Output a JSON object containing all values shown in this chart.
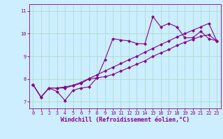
{
  "xlabel": "Windchill (Refroidissement éolien,°C)",
  "ylabel": "",
  "bg_color": "#cceeff",
  "line_color": "#880088",
  "grid_color": "#aaddcc",
  "xlim": [
    -0.5,
    23.5
  ],
  "ylim": [
    6.7,
    11.3
  ],
  "xticks": [
    0,
    1,
    2,
    3,
    4,
    5,
    6,
    7,
    8,
    9,
    10,
    11,
    12,
    13,
    14,
    15,
    16,
    17,
    18,
    19,
    20,
    21,
    22,
    23
  ],
  "yticks": [
    7,
    8,
    9,
    10,
    11
  ],
  "line1_x": [
    0,
    1,
    2,
    3,
    4,
    5,
    6,
    7,
    8,
    9,
    10,
    11,
    12,
    13,
    14,
    15,
    16,
    17,
    18,
    19,
    20,
    21,
    22,
    23
  ],
  "line1_y": [
    7.75,
    7.2,
    7.6,
    7.45,
    7.05,
    7.5,
    7.6,
    7.65,
    8.05,
    8.85,
    9.78,
    9.72,
    9.68,
    9.56,
    9.55,
    10.75,
    10.3,
    10.45,
    10.3,
    9.82,
    9.82,
    10.1,
    9.78,
    9.68
  ],
  "line2_x": [
    0,
    1,
    2,
    3,
    4,
    5,
    6,
    7,
    8,
    9,
    10,
    11,
    12,
    13,
    14,
    15,
    16,
    17,
    18,
    19,
    20,
    21,
    22,
    23
  ],
  "line2_y": [
    7.75,
    7.2,
    7.6,
    7.6,
    7.6,
    7.7,
    7.8,
    8.0,
    8.05,
    8.1,
    8.2,
    8.35,
    8.5,
    8.65,
    8.8,
    9.0,
    9.15,
    9.3,
    9.48,
    9.62,
    9.75,
    9.88,
    9.95,
    9.68
  ],
  "line3_x": [
    0,
    1,
    2,
    3,
    4,
    5,
    6,
    7,
    8,
    9,
    10,
    11,
    12,
    13,
    14,
    15,
    16,
    17,
    18,
    19,
    20,
    21,
    22,
    23
  ],
  "line3_y": [
    7.75,
    7.2,
    7.6,
    7.6,
    7.65,
    7.72,
    7.85,
    8.02,
    8.18,
    8.35,
    8.52,
    8.68,
    8.85,
    9.0,
    9.18,
    9.35,
    9.52,
    9.68,
    9.85,
    10.0,
    10.15,
    10.3,
    10.45,
    9.68
  ],
  "marker": "D",
  "markersize": 2.0,
  "linewidth": 0.8,
  "tick_fontsize": 5.0,
  "xlabel_fontsize": 6.0
}
